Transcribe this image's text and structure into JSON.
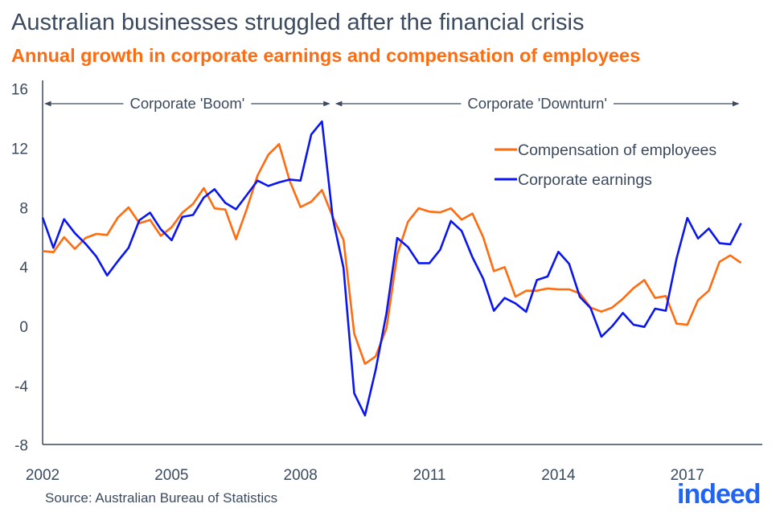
{
  "header": {
    "title": "Australian businesses struggled after the financial crisis",
    "subtitle": "Annual growth in corporate earnings and compensation of employees"
  },
  "footer": {
    "source": "Source: Australian Bureau of Statistics",
    "logo": "indeed"
  },
  "colors": {
    "employees": "#ff6b0f",
    "earnings": "#0a16f0",
    "axis": "#3b4a5e",
    "logo": "#2164f3"
  },
  "chart_data": {
    "type": "line",
    "title": "Australian businesses struggled after the financial crisis",
    "subtitle": "Annual growth in corporate earnings and compensation of employees",
    "xlabel": "",
    "ylabel": "",
    "ylim": [
      -8,
      16
    ],
    "xlim": [
      2002,
      2018.25
    ],
    "x_start": 2002,
    "x_step": 0.25,
    "yticks": [
      "16",
      "12",
      "8",
      "4",
      "0",
      "-4",
      "-8"
    ],
    "ytick_values": [
      16,
      12,
      8,
      4,
      0,
      -4,
      -8
    ],
    "xticks": [
      "2002",
      "2005",
      "2008",
      "2011",
      "2014",
      "2017"
    ],
    "xtick_values": [
      2002,
      2005,
      2008,
      2011,
      2014,
      2017
    ],
    "grid": false,
    "legend_position": "top-right",
    "annotations": [
      {
        "label": "Corporate 'Boom'",
        "from": 2002,
        "to": 2008.75
      },
      {
        "label": "Corporate 'Downturn'",
        "from": 2008.75,
        "to": 2018.25
      }
    ],
    "series": [
      {
        "name": "Compensation of employees",
        "color": "#ff6b0f",
        "values": [
          5.07,
          5.0,
          6.01,
          5.22,
          5.96,
          6.23,
          6.16,
          7.33,
          8.02,
          6.95,
          7.17,
          6.1,
          6.68,
          7.66,
          8.25,
          9.32,
          7.95,
          7.87,
          5.87,
          7.91,
          10.17,
          11.56,
          12.28,
          9.8,
          8.04,
          8.4,
          9.19,
          7.37,
          5.83,
          -0.49,
          -2.53,
          -2.02,
          -0.13,
          4.84,
          7.04,
          7.96,
          7.73,
          7.68,
          7.95,
          7.19,
          7.6,
          6.01,
          3.72,
          3.99,
          2.0,
          2.4,
          2.4,
          2.55,
          2.49,
          2.49,
          2.22,
          1.26,
          0.99,
          1.26,
          1.86,
          2.58,
          3.12,
          1.91,
          2.04,
          0.18,
          0.11,
          1.77,
          2.4,
          4.35,
          4.78,
          4.28
        ]
      },
      {
        "name": "Corporate earnings",
        "color": "#0a16f0",
        "values": [
          7.33,
          5.29,
          7.22,
          6.28,
          5.56,
          4.71,
          3.43,
          4.39,
          5.29,
          7.15,
          7.66,
          6.54,
          5.8,
          7.37,
          7.51,
          8.68,
          9.24,
          8.32,
          7.89,
          8.85,
          9.82,
          9.46,
          9.7,
          9.89,
          9.82,
          12.93,
          13.81,
          7.3,
          3.94,
          -4.51,
          -6.0,
          -2.93,
          0.87,
          5.96,
          5.35,
          4.26,
          4.26,
          5.16,
          7.1,
          6.43,
          4.66,
          3.21,
          1.05,
          1.91,
          1.55,
          0.98,
          3.12,
          3.36,
          5.02,
          4.21,
          1.99,
          1.23,
          -0.7,
          0.0,
          0.9,
          0.11,
          -0.04,
          1.19,
          1.05,
          4.57,
          7.3,
          5.92,
          6.59,
          5.6,
          5.53,
          6.95
        ]
      }
    ]
  }
}
